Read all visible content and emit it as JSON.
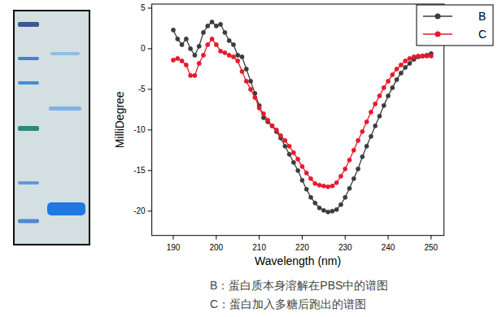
{
  "chart_data": {
    "type": "line",
    "x_label": "Wavelength (nm)",
    "y_label": "MilliDegree",
    "x": [
      190,
      191,
      192,
      193,
      194,
      195,
      196,
      197,
      198,
      199,
      200,
      201,
      202,
      203,
      204,
      205,
      206,
      207,
      208,
      209,
      210,
      211,
      212,
      213,
      214,
      215,
      216,
      217,
      218,
      219,
      220,
      221,
      222,
      223,
      224,
      225,
      226,
      227,
      228,
      229,
      230,
      231,
      232,
      233,
      234,
      235,
      236,
      237,
      238,
      239,
      240,
      241,
      242,
      243,
      244,
      245,
      246,
      247,
      248,
      249,
      250
    ],
    "series": [
      {
        "name": "B",
        "color": "#3c3c3c",
        "marker": "circle",
        "line_style": "solid",
        "values": [
          2.3,
          1.2,
          0.5,
          1.2,
          0,
          -0.8,
          0.3,
          2,
          2.8,
          3.3,
          2.8,
          3,
          2,
          1,
          0.5,
          -0.8,
          -1,
          -2.5,
          -4,
          -5.5,
          -7,
          -8.5,
          -9,
          -9.5,
          -10.2,
          -11,
          -12,
          -13,
          -14,
          -15,
          -16.2,
          -17.3,
          -18.3,
          -19,
          -19.6,
          -19.9,
          -20.1,
          -20,
          -19.8,
          -19.2,
          -18.3,
          -17.2,
          -16,
          -14.8,
          -13.3,
          -12,
          -10.8,
          -9.5,
          -8.3,
          -7,
          -5.8,
          -4.8,
          -3.8,
          -3,
          -2.3,
          -1.8,
          -1.3,
          -1,
          -0.9,
          -0.8,
          -0.6
        ]
      },
      {
        "name": "C",
        "color": "#e8192c",
        "marker": "circle",
        "line_style": "solid",
        "values": [
          -1.4,
          -1.2,
          -1.5,
          -2,
          -3.3,
          -3.3,
          -1.8,
          -0.8,
          0.5,
          1.2,
          0.5,
          -0.3,
          -0.5,
          -0.8,
          -1,
          -1.5,
          -2.8,
          -4,
          -5,
          -6,
          -7.3,
          -8,
          -8.8,
          -9.5,
          -10,
          -10.7,
          -11.3,
          -12,
          -12.8,
          -13.6,
          -14.5,
          -15.3,
          -16,
          -16.6,
          -16.8,
          -16.9,
          -17,
          -16.9,
          -16.5,
          -15.7,
          -14.8,
          -13.7,
          -12.5,
          -11.3,
          -10.2,
          -9,
          -7.8,
          -6.8,
          -5.8,
          -4.8,
          -4,
          -3.2,
          -2.5,
          -2,
          -1.5,
          -1.2,
          -1,
          -0.9,
          -0.9,
          -0.9,
          -0.9
        ]
      }
    ],
    "xlim": [
      185,
      253
    ],
    "ylim": [
      -23,
      5.5
    ],
    "xticks": [
      190,
      200,
      210,
      220,
      230,
      240,
      250
    ],
    "yticks": [
      5,
      0,
      -5,
      -10,
      -15,
      -20
    ],
    "legend": "upper right",
    "grid": false,
    "annotations": [
      "B：蛋白质本身溶解在PBS中的谱图",
      "C：蛋白加入多糖后跑出的谱图"
    ]
  }
}
